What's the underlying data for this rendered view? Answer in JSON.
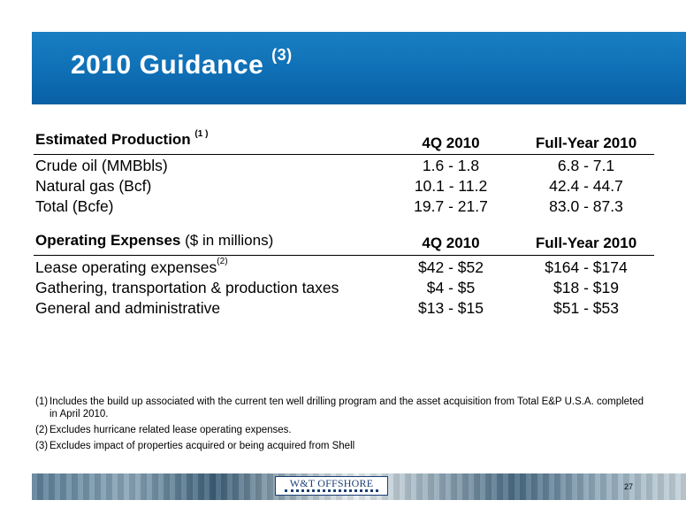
{
  "title": "2010 Guidance",
  "title_sup": "(3)",
  "production": {
    "header": "Estimated Production",
    "header_sup": "(1 )",
    "col_q4": "4Q 2010",
    "col_fy": "Full-Year 2010",
    "rows": [
      {
        "label": "Crude oil (MMBbls)",
        "q4": "1.6 - 1.8",
        "fy": "6.8 - 7.1"
      },
      {
        "label": "Natural gas (Bcf)",
        "q4": "10.1 - 11.2",
        "fy": "42.4 - 44.7"
      },
      {
        "label": "Total (Bcfe)",
        "q4": "19.7 - 21.7",
        "fy": "83.0 - 87.3"
      }
    ]
  },
  "expenses": {
    "header": "Operating Expenses",
    "header_suffix": "($ in millions)",
    "col_q4": "4Q 2010",
    "col_fy": "Full-Year 2010",
    "rows": [
      {
        "label": "Lease operating expenses",
        "sup": "(2)",
        "q4": "$42 - $52",
        "fy": "$164 - $174"
      },
      {
        "label": "Gathering, transportation & production taxes",
        "sup": "",
        "q4": "$4 - $5",
        "fy": "$18 - $19"
      },
      {
        "label": "General and administrative",
        "sup": "",
        "q4": "$13 - $15",
        "fy": "$51 - $53"
      }
    ]
  },
  "footnotes": [
    {
      "num": "(1)",
      "text": "Includes the build up associated with the current ten well drilling program and the asset acquisition from Total E&P U.S.A. completed in April 2010."
    },
    {
      "num": "(2)",
      "text": "Excludes hurricane related lease operating expenses."
    },
    {
      "num": "(3)",
      "text": "Excludes impact of properties acquired or being acquired from Shell"
    }
  ],
  "footer": {
    "logo_text": "W&T OFFSHORE",
    "page_number": "27"
  },
  "colors": {
    "banner_blue": "#0e6fb5",
    "logo_navy": "#1c3f74"
  }
}
